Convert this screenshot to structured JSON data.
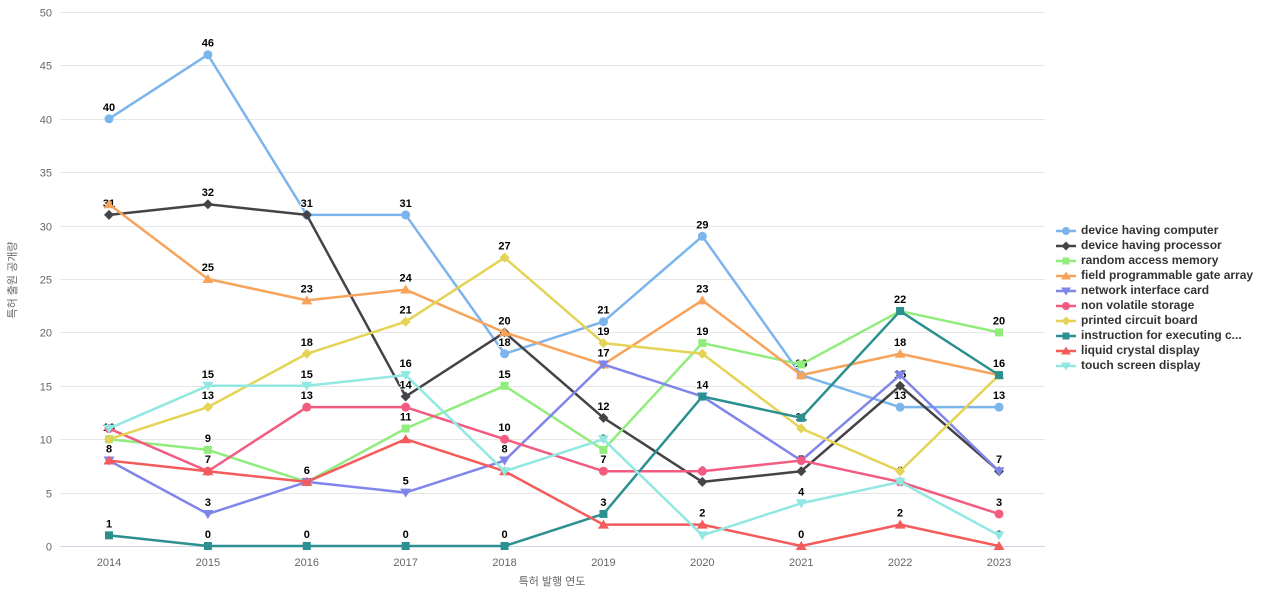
{
  "chart_data": {
    "type": "line",
    "title": "",
    "x": [
      "2014",
      "2015",
      "2016",
      "2017",
      "2018",
      "2019",
      "2020",
      "2021",
      "2022",
      "2023"
    ],
    "xlabel": "특허 발행 연도",
    "ylabel": "특허 출원 공개량",
    "ylim": [
      0,
      50
    ],
    "ytick_interval": 5,
    "yticks": [
      "0",
      "5",
      "10",
      "15",
      "20",
      "25",
      "30",
      "35",
      "40",
      "45",
      "50"
    ],
    "grid": true,
    "legend_position": "right",
    "series": [
      {
        "name": "device having computer",
        "color": "#7cb5ec",
        "marker": "circle",
        "values": [
          40,
          46,
          31,
          31,
          18,
          21,
          29,
          16,
          13,
          13
        ],
        "hidden_labels": []
      },
      {
        "name": "device having processor",
        "color": "#434348",
        "marker": "diamond",
        "values": [
          31,
          32,
          31,
          14,
          20,
          12,
          6,
          7,
          15,
          7
        ],
        "hidden_labels": [
          2
        ]
      },
      {
        "name": "random access memory",
        "color": "#90ed7d",
        "marker": "square",
        "values": [
          10,
          9,
          6,
          11,
          15,
          9,
          19,
          17,
          22,
          20
        ],
        "hidden_labels": [
          7
        ]
      },
      {
        "name": "field programmable gate array",
        "color": "#f7a35c",
        "marker": "triangle",
        "values": [
          32,
          25,
          23,
          24,
          20,
          17,
          23,
          16,
          18,
          16
        ],
        "hidden_labels": [
          0,
          4,
          7
        ]
      },
      {
        "name": "network interface card",
        "color": "#8085e9",
        "marker": "triangle-down",
        "values": [
          8,
          3,
          6,
          5,
          8,
          17,
          14,
          8,
          16,
          7
        ],
        "hidden_labels": [
          2,
          5,
          7,
          8,
          9
        ]
      },
      {
        "name": "non volatile storage",
        "color": "#f15c80",
        "marker": "circle",
        "values": [
          11,
          7,
          13,
          13,
          10,
          7,
          7,
          8,
          6,
          3
        ],
        "hidden_labels": [
          0,
          3,
          6,
          7
        ]
      },
      {
        "name": "printed circuit board",
        "color": "#e4d354",
        "marker": "diamond",
        "values": [
          10,
          13,
          18,
          21,
          27,
          19,
          18,
          11,
          7,
          16
        ],
        "hidden_labels": [
          0,
          6,
          8,
          9
        ]
      },
      {
        "name": "instruction for executing c...",
        "color": "#2b908f",
        "marker": "square",
        "values": [
          1,
          0,
          0,
          0,
          0,
          3,
          14,
          12,
          22,
          16
        ],
        "hidden_labels": [
          6,
          7,
          8,
          9
        ]
      },
      {
        "name": "liquid crystal display",
        "color": "#f45b5b",
        "marker": "triangle",
        "values": [
          8,
          7,
          6,
          10,
          7,
          2,
          2,
          0,
          2,
          0
        ],
        "hidden_labels": [
          0,
          1,
          2,
          3,
          4,
          5
        ]
      },
      {
        "name": "touch screen display",
        "color": "#91e8e1",
        "marker": "triangle-down",
        "values": [
          11,
          15,
          15,
          16,
          7,
          10,
          1,
          4,
          6,
          1
        ],
        "hidden_labels": [
          0,
          4,
          5,
          6,
          8,
          9
        ]
      }
    ],
    "colors": {
      "grid_line": "#e6e6e6",
      "axis_line": "#ccd6eb",
      "axis_text": "#666666",
      "data_label": "#000000",
      "legend_text": "#333333",
      "background": "#ffffff"
    }
  },
  "axes": {
    "x_title": "특허 발행 연도",
    "y_title": "특허 출원 공개량"
  }
}
